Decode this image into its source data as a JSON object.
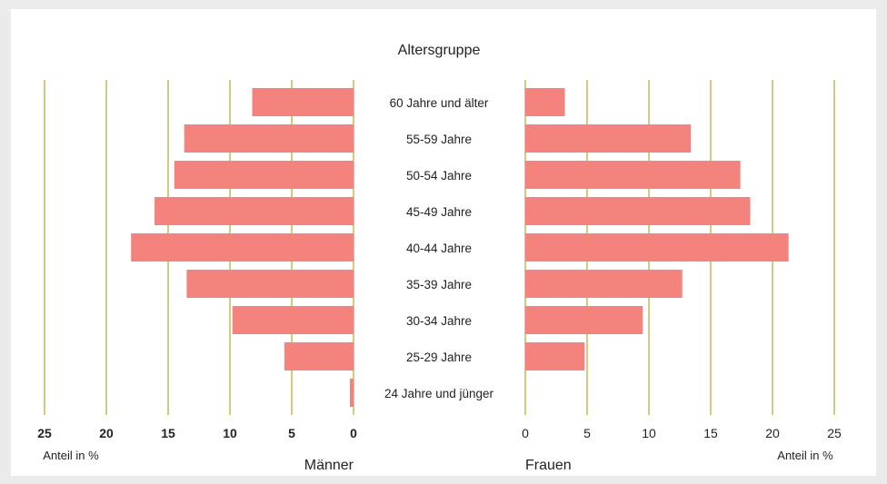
{
  "chart_data": {
    "type": "bar",
    "title": "Altersgruppe",
    "categories": [
      "60 Jahre und älter",
      "55-59 Jahre",
      "50-54 Jahre",
      "45-49 Jahre",
      "40-44 Jahre",
      "35-39 Jahre",
      "30-34 Jahre",
      "25-29 Jahre",
      "24 Jahre und jünger"
    ],
    "series": [
      {
        "name": "Männer",
        "values": [
          8.2,
          13.7,
          14.5,
          16.1,
          18.0,
          13.5,
          9.8,
          5.6,
          0.3
        ]
      },
      {
        "name": "Frauen",
        "values": [
          3.2,
          13.4,
          17.4,
          18.2,
          21.3,
          12.7,
          9.5,
          4.8,
          0.0
        ]
      }
    ],
    "xlim": [
      0,
      25
    ],
    "ticks": [
      "25",
      "20",
      "15",
      "10",
      "5",
      "0"
    ],
    "xlabel": "Anteil in %",
    "grid": true,
    "colors": {
      "bar": "#f4837d",
      "grid": "#b5a82c"
    }
  }
}
